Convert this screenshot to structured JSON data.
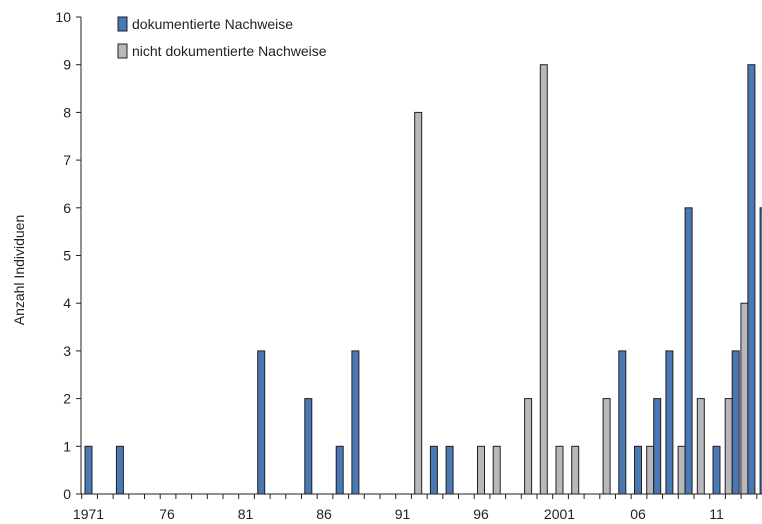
{
  "chart_data": {
    "type": "bar",
    "ylabel": "Anzahl Individuen",
    "xlabel": "",
    "ylim": [
      0,
      10
    ],
    "yticks": [
      0,
      1,
      2,
      3,
      4,
      5,
      6,
      7,
      8,
      9,
      10
    ],
    "years": [
      1971,
      1972,
      1973,
      1974,
      1975,
      1976,
      1977,
      1978,
      1979,
      1980,
      1981,
      1982,
      1983,
      1984,
      1985,
      1986,
      1987,
      1988,
      1989,
      1990,
      1991,
      1992,
      1993,
      1994,
      1995,
      1996,
      1997,
      1998,
      1999,
      2000,
      2001,
      2002,
      2003,
      2004,
      2005,
      2006,
      2007,
      2008,
      2009,
      2010,
      2011,
      2012,
      2013,
      2014
    ],
    "xtick_labels": [
      {
        "year": 1971,
        "label": "1971"
      },
      {
        "year": 1976,
        "label": "76"
      },
      {
        "year": 1981,
        "label": "81"
      },
      {
        "year": 1986,
        "label": "86"
      },
      {
        "year": 1991,
        "label": "91"
      },
      {
        "year": 1996,
        "label": "96"
      },
      {
        "year": 2001,
        "label": "2001"
      },
      {
        "year": 2006,
        "label": "06"
      },
      {
        "year": 2011,
        "label": "11"
      }
    ],
    "legend_position": "top-left",
    "series": [
      {
        "name": "dokumentierte Nachweise",
        "color": "#4a78b5",
        "values": [
          1,
          0,
          1,
          0,
          0,
          0,
          0,
          0,
          0,
          0,
          0,
          3,
          0,
          0,
          2,
          0,
          1,
          3,
          0,
          0,
          0,
          0,
          1,
          1,
          0,
          0,
          0,
          0,
          0,
          0,
          0,
          0,
          0,
          0,
          3,
          1,
          2,
          3,
          6,
          0,
          1,
          3,
          9,
          6
        ]
      },
      {
        "name": "nicht dokumentierte Nachweise",
        "color": "#b8b8bc",
        "values": [
          0,
          0,
          0,
          0,
          0,
          0,
          0,
          0,
          0,
          0,
          0,
          0,
          0,
          0,
          0,
          0,
          0,
          0,
          0,
          0,
          0,
          8,
          0,
          0,
          0,
          1,
          1,
          0,
          2,
          9,
          1,
          1,
          0,
          2,
          0,
          0,
          1,
          0,
          1,
          2,
          0,
          2,
          4,
          0
        ]
      }
    ]
  }
}
